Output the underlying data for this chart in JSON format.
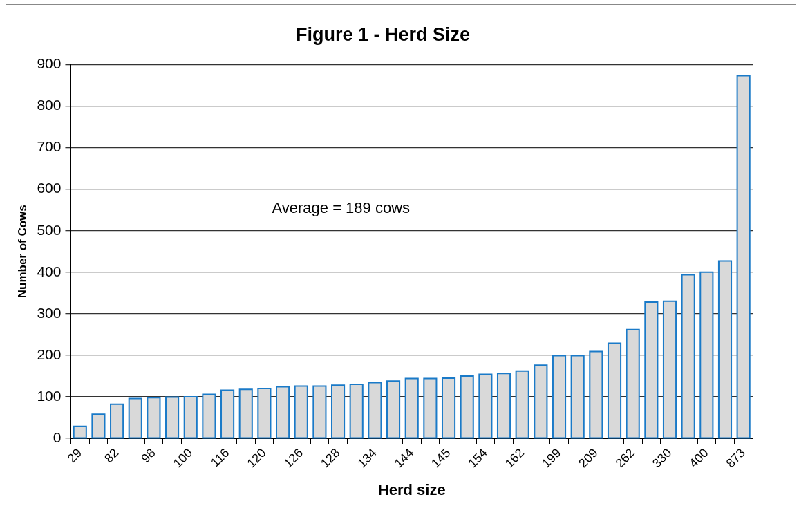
{
  "chart_data": {
    "type": "bar",
    "title": "Figure 1 - Herd Size",
    "xlabel": "Herd size",
    "ylabel": "Number of Cows",
    "categories": [
      "29",
      null,
      "82",
      null,
      "98",
      null,
      "100",
      null,
      "116",
      null,
      "120",
      null,
      "126",
      null,
      "128",
      null,
      "134",
      null,
      "144",
      null,
      "145",
      null,
      "154",
      null,
      "162",
      null,
      "199",
      null,
      "209",
      null,
      "262",
      null,
      "330",
      null,
      "400",
      null,
      "873"
    ],
    "series": [
      {
        "color": "#d9d9d9",
        "values": [
          29,
          58,
          82,
          96,
          98,
          99,
          100,
          106,
          116,
          118,
          120,
          124,
          126,
          126,
          128,
          130,
          134,
          138,
          144,
          144,
          145,
          150,
          154,
          156,
          162,
          176,
          199,
          199,
          209,
          229,
          262,
          328,
          330,
          394,
          400,
          427,
          873
        ]
      }
    ],
    "ylim": [
      0,
      900
    ],
    "yticks": [
      0,
      100,
      200,
      300,
      400,
      500,
      600,
      700,
      800,
      900
    ],
    "grid": "y",
    "legend": false,
    "annotations": [
      "Average = 189 cows"
    ]
  }
}
